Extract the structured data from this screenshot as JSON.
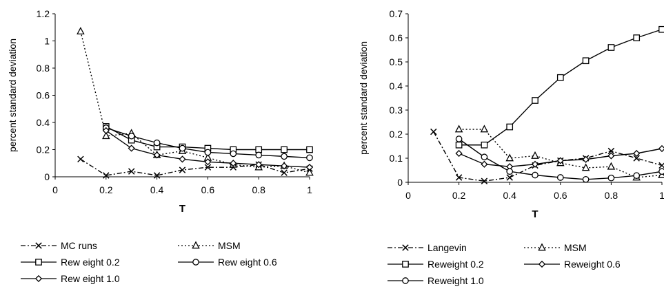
{
  "chart_data": [
    {
      "type": "line",
      "title": "",
      "xlabel": "T",
      "ylabel": "percent standard deviation",
      "xlim": [
        0,
        1
      ],
      "ylim": [
        0,
        1.2
      ],
      "xticks": [
        0,
        0.2,
        0.4,
        0.6,
        0.8,
        1
      ],
      "xtick_labels": [
        "0",
        "0.2",
        "0.4",
        "0.6",
        "0.8",
        "1"
      ],
      "yticks": [
        0,
        0.2,
        0.4,
        0.6,
        0.8,
        1,
        1.2
      ],
      "ytick_labels": [
        "0",
        "0.2",
        "0.4",
        "0.6",
        "0.8",
        "1",
        "1.2"
      ],
      "grid": false,
      "legend_position": "bottom",
      "series": [
        {
          "name": "MC runs",
          "marker": "x",
          "dash": "dashdot",
          "x": [
            0.1,
            0.2,
            0.3,
            0.4,
            0.5,
            0.6,
            0.7,
            0.8,
            0.9,
            1.0
          ],
          "y": [
            0.13,
            0.01,
            0.04,
            0.01,
            0.05,
            0.07,
            0.07,
            0.09,
            0.03,
            0.06
          ]
        },
        {
          "name": "MSM",
          "marker": "triangle",
          "dash": "dotted",
          "x": [
            0.1,
            0.2,
            0.3,
            0.4,
            0.5,
            0.6,
            0.7,
            0.8,
            0.9,
            1.0
          ],
          "y": [
            1.07,
            0.3,
            0.32,
            0.16,
            0.19,
            0.14,
            0.09,
            0.07,
            0.08,
            0.03
          ]
        },
        {
          "name": "Rew eight 0.2",
          "marker": "square",
          "dash": "solid",
          "x": [
            0.2,
            0.3,
            0.4,
            0.5,
            0.6,
            0.7,
            0.8,
            0.9,
            1.0
          ],
          "y": [
            0.37,
            0.27,
            0.22,
            0.22,
            0.21,
            0.2,
            0.2,
            0.2,
            0.2
          ]
        },
        {
          "name": "Rew eight 0.6",
          "marker": "circle",
          "dash": "solid",
          "x": [
            0.2,
            0.3,
            0.4,
            0.5,
            0.6,
            0.7,
            0.8,
            0.9,
            1.0
          ],
          "y": [
            0.36,
            0.3,
            0.25,
            0.21,
            0.18,
            0.17,
            0.16,
            0.15,
            0.14
          ]
        },
        {
          "name": "Rew eight 1.0",
          "marker": "diamond",
          "dash": "solid",
          "x": [
            0.2,
            0.3,
            0.4,
            0.5,
            0.6,
            0.7,
            0.8,
            0.9,
            1.0
          ],
          "y": [
            0.34,
            0.21,
            0.16,
            0.13,
            0.11,
            0.1,
            0.09,
            0.08,
            0.07
          ]
        }
      ]
    },
    {
      "type": "line",
      "title": "",
      "xlabel": "T",
      "ylabel": "percent standard deviation",
      "xlim": [
        0,
        1
      ],
      "ylim": [
        0,
        0.7
      ],
      "xticks": [
        0,
        0.2,
        0.4,
        0.6,
        0.8,
        1
      ],
      "xtick_labels": [
        "0",
        "0.2",
        "0.4",
        "0.6",
        "0.8",
        "1"
      ],
      "yticks": [
        0,
        0.1,
        0.2,
        0.3,
        0.4,
        0.5,
        0.6,
        0.7
      ],
      "ytick_labels": [
        "0",
        "0.1",
        "0.2",
        "0.3",
        "0.4",
        "0.5",
        "0.6",
        "0.7"
      ],
      "grid": false,
      "legend_position": "bottom",
      "series": [
        {
          "name": "Langevin",
          "marker": "x",
          "dash": "dashdot",
          "x": [
            0.1,
            0.2,
            0.3,
            0.4,
            0.5,
            0.6,
            0.7,
            0.8,
            0.9,
            1.0
          ],
          "y": [
            0.21,
            0.02,
            0.005,
            0.02,
            0.07,
            0.09,
            0.1,
            0.13,
            0.1,
            0.07
          ]
        },
        {
          "name": "MSM",
          "marker": "triangle",
          "dash": "dotted",
          "x": [
            0.2,
            0.3,
            0.4,
            0.5,
            0.6,
            0.7,
            0.8,
            0.9,
            1.0
          ],
          "y": [
            0.22,
            0.22,
            0.1,
            0.11,
            0.08,
            0.06,
            0.065,
            0.02,
            0.03
          ]
        },
        {
          "name": "Reweight 0.2",
          "marker": "square",
          "dash": "solid",
          "x": [
            0.2,
            0.3,
            0.4,
            0.5,
            0.6,
            0.7,
            0.8,
            0.9,
            1.0
          ],
          "y": [
            0.155,
            0.155,
            0.23,
            0.34,
            0.435,
            0.505,
            0.56,
            0.6,
            0.635
          ]
        },
        {
          "name": "Reweight 0.6",
          "marker": "diamond",
          "dash": "solid",
          "x": [
            0.2,
            0.3,
            0.4,
            0.5,
            0.6,
            0.7,
            0.8,
            0.9,
            1.0
          ],
          "y": [
            0.12,
            0.075,
            0.065,
            0.075,
            0.09,
            0.095,
            0.11,
            0.12,
            0.14
          ]
        },
        {
          "name": "Reweight 1.0",
          "marker": "circle",
          "dash": "solid",
          "x": [
            0.2,
            0.3,
            0.4,
            0.5,
            0.6,
            0.7,
            0.8,
            0.9,
            1.0
          ],
          "y": [
            0.18,
            0.105,
            0.045,
            0.03,
            0.02,
            0.012,
            0.018,
            0.028,
            0.045
          ]
        }
      ]
    }
  ]
}
